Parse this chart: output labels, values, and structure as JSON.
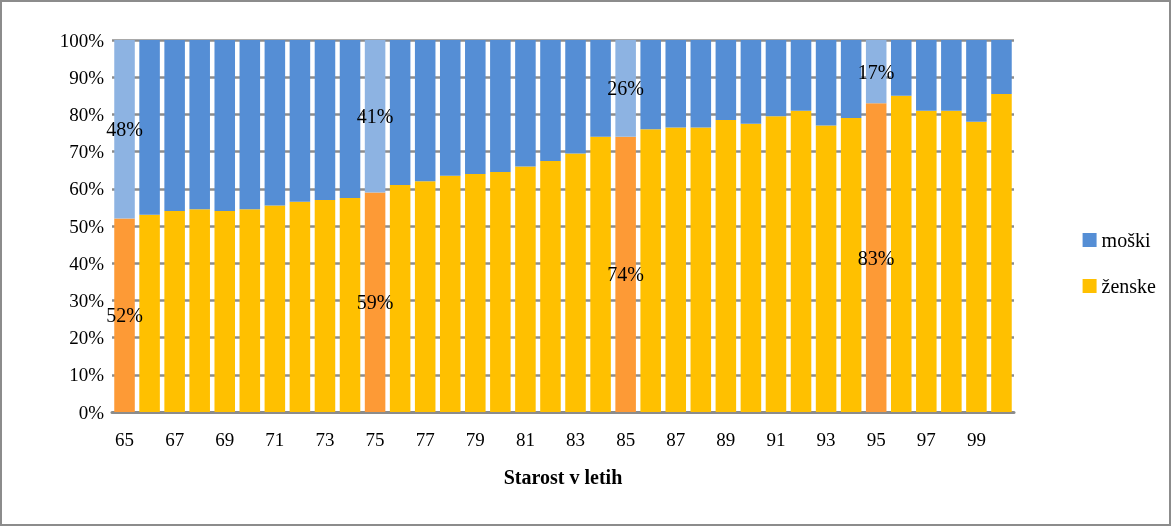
{
  "chart_data": {
    "type": "bar",
    "stacked": true,
    "xlabel": "Starost v letih",
    "categories": [
      "65",
      null,
      "67",
      null,
      "69",
      null,
      "71",
      null,
      "73",
      null,
      "75",
      null,
      "77",
      null,
      "79",
      null,
      "81",
      null,
      "83",
      null,
      "85",
      null,
      "87",
      null,
      "89",
      null,
      "91",
      null,
      "93",
      null,
      "95",
      null,
      "97",
      null,
      "99",
      null
    ],
    "series": [
      {
        "name": "ženske",
        "color": "#ffc000",
        "colors": [
          "#fd9a36",
          "#ffc000",
          "#ffc000",
          "#ffc000",
          "#ffc000",
          "#ffc000",
          "#ffc000",
          "#ffc000",
          "#ffc000",
          "#ffc000",
          "#fd9a36",
          "#ffc000",
          "#ffc000",
          "#ffc000",
          "#ffc000",
          "#ffc000",
          "#ffc000",
          "#ffc000",
          "#ffc000",
          "#ffc000",
          "#fd9a36",
          "#ffc000",
          "#ffc000",
          "#ffc000",
          "#ffc000",
          "#ffc000",
          "#ffc000",
          "#ffc000",
          "#ffc000",
          "#ffc000",
          "#fd9a36",
          "#ffc000",
          "#ffc000",
          "#ffc000",
          "#ffc000",
          "#ffc000"
        ],
        "values": [
          52,
          53,
          54,
          54.5,
          54,
          54.5,
          55.5,
          56.5,
          57,
          57.5,
          59,
          61,
          62,
          63.5,
          64,
          64.5,
          66,
          67.5,
          69.5,
          74,
          74,
          76,
          76.5,
          76.5,
          78.5,
          77.5,
          79.5,
          81,
          77,
          79,
          83,
          85,
          81,
          81,
          78,
          85.5
        ],
        "value_labels": [
          "52%",
          null,
          null,
          null,
          null,
          null,
          null,
          null,
          null,
          null,
          "59%",
          null,
          null,
          null,
          null,
          null,
          null,
          null,
          null,
          null,
          "74%",
          null,
          null,
          null,
          null,
          null,
          null,
          null,
          null,
          null,
          "83%",
          null,
          null,
          null,
          null,
          null
        ]
      },
      {
        "name": "moški",
        "color": "#558ed5",
        "colors": [
          "#8db3e2",
          "#558ed5",
          "#558ed5",
          "#558ed5",
          "#558ed5",
          "#558ed5",
          "#558ed5",
          "#558ed5",
          "#558ed5",
          "#558ed5",
          "#8db3e2",
          "#558ed5",
          "#558ed5",
          "#558ed5",
          "#558ed5",
          "#558ed5",
          "#558ed5",
          "#558ed5",
          "#558ed5",
          "#558ed5",
          "#8db3e2",
          "#558ed5",
          "#558ed5",
          "#558ed5",
          "#558ed5",
          "#558ed5",
          "#558ed5",
          "#558ed5",
          "#558ed5",
          "#558ed5",
          "#8db3e2",
          "#558ed5",
          "#558ed5",
          "#558ed5",
          "#558ed5",
          "#558ed5"
        ],
        "values": [
          48,
          47,
          46,
          45.5,
          46,
          45.5,
          44.5,
          43.5,
          43,
          42.5,
          41,
          39,
          38,
          36.5,
          36,
          35.5,
          34,
          32.5,
          30.5,
          26,
          26,
          24,
          23.5,
          23.5,
          21.5,
          22.5,
          20.5,
          19,
          23,
          21,
          17,
          15,
          19,
          19,
          22,
          14.5
        ],
        "value_labels": [
          "48%",
          null,
          null,
          null,
          null,
          null,
          null,
          null,
          null,
          null,
          "41%",
          null,
          null,
          null,
          null,
          null,
          null,
          null,
          null,
          null,
          "26%",
          null,
          null,
          null,
          null,
          null,
          null,
          null,
          null,
          null,
          "17%",
          null,
          null,
          null,
          null,
          null
        ]
      }
    ],
    "ylim": [
      0,
      100
    ],
    "yticks": [
      {
        "value": 0,
        "label": "0%"
      },
      {
        "value": 10,
        "label": "10%"
      },
      {
        "value": 20,
        "label": "20%"
      },
      {
        "value": 30,
        "label": "30%"
      },
      {
        "value": 40,
        "label": "40%"
      },
      {
        "value": 50,
        "label": "50%"
      },
      {
        "value": 60,
        "label": "60%"
      },
      {
        "value": 70,
        "label": "70%"
      },
      {
        "value": 80,
        "label": "80%"
      },
      {
        "value": 90,
        "label": "90%"
      },
      {
        "value": 100,
        "label": "100%"
      }
    ],
    "grid": "y",
    "legend": "right"
  }
}
